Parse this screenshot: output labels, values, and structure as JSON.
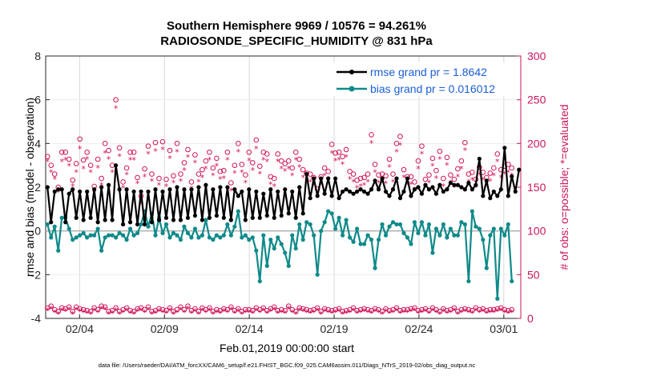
{
  "chart_data": {
    "type": "line",
    "title": "Southern Hemisphere 9969 / 10576 = 94.261%",
    "subtitle": "RADIOSONDE_SPECIFIC_HUMIDITY @ 831 hPa",
    "xlabel": "Feb.01,2019 00:00:00 start",
    "ylabel": "rmse and bias (model - observation)",
    "y2label": "# of obs: o=possible; *=evaluated",
    "footer": "data file: /Users/raeder/DAI/ATM_forcXX/CAM6_setup/f.e21.FHIST_BGC.f09_025.CAM6assim.011/Diags_NTrS_2019-02/obs_diag_output.nc",
    "xlim": [
      1,
      29
    ],
    "ylim": [
      -4,
      8
    ],
    "y2lim": [
      0,
      300
    ],
    "x_ticks": [
      3,
      8,
      13,
      18,
      23,
      28
    ],
    "x_tick_labels": [
      "02/04",
      "02/09",
      "02/14",
      "02/19",
      "02/24",
      "03/01"
    ],
    "y_ticks": [
      -4,
      -2,
      0,
      2,
      4,
      6,
      8
    ],
    "y2_ticks": [
      0,
      50,
      100,
      150,
      200,
      250,
      300
    ],
    "colors": {
      "rmse": "#000000",
      "bias": "#0f8a8a",
      "counts": "#d0145a",
      "legend_text": "#1a5fd6",
      "right_axis": "#c8175d"
    },
    "legend": [
      {
        "label": "rmse grand pr = 1.8642",
        "series": "rmse"
      },
      {
        "label": "bias grand pr = 0.016012",
        "series": "bias"
      }
    ],
    "series": [
      {
        "name": "rmse",
        "values": [
          2.0,
          0.4,
          1.8,
          1.9,
          1.9,
          0.4,
          1.7,
          1.9,
          0.6,
          1.8,
          0.5,
          1.8,
          0.6,
          1.9,
          0.4,
          2.0,
          0.5,
          2.1,
          0.5,
          3.0,
          1.9,
          0.3,
          1.9,
          0.4,
          1.8,
          0.3,
          1.8,
          0.3,
          1.8,
          0.4,
          1.9,
          0.5,
          1.8,
          0.6,
          1.9,
          0.5,
          2.0,
          0.5,
          1.9,
          0.6,
          1.9,
          0.7,
          2.0,
          0.5,
          2.1,
          0.6,
          1.9,
          0.7,
          2.0,
          0.6,
          2.0,
          0.5,
          1.9,
          1.6,
          1.8,
          0.5,
          1.9,
          0.6,
          1.8,
          0.6,
          1.7,
          0.7,
          1.9,
          0.6,
          1.8,
          0.7,
          1.9,
          0.8,
          1.8,
          0.6,
          2.0,
          0.8,
          2.6,
          1.5,
          2.4,
          1.6,
          2.4,
          1.7,
          2.4,
          1.6,
          2.4,
          1.5,
          1.8,
          1.9,
          1.8,
          1.7,
          1.8,
          1.9,
          1.8,
          1.7,
          1.9,
          2.3,
          1.9,
          2.4,
          1.8,
          1.6,
          1.9,
          2.4,
          1.5,
          1.8,
          2.4,
          1.6,
          1.9,
          2.0,
          1.7,
          2.1,
          1.9,
          2.0,
          1.7,
          2.1,
          1.8,
          1.9,
          2.2,
          2.1,
          2.1,
          2.0,
          1.9,
          2.2,
          1.9,
          2.1,
          3.3,
          1.6,
          2.3,
          1.5,
          1.8,
          1.6,
          1.9,
          3.8,
          1.6,
          2.5,
          1.8,
          2.8
        ]
      },
      {
        "name": "bias",
        "values": [
          0.3,
          -0.3,
          0.2,
          -0.9,
          0.6,
          0.6,
          0.1,
          -0.4,
          -0.3,
          -0.2,
          -0.1,
          -0.3,
          -0.2,
          -0.2,
          0.1,
          -0.9,
          -0.3,
          -0.2,
          -0.2,
          -0.3,
          -0.1,
          -0.2,
          -0.4,
          0.1,
          -0.2,
          -0.1,
          0.3,
          0.9,
          0.2,
          0.8,
          -0.2,
          0.6,
          -0.1,
          0.3,
          -0.3,
          -0.1,
          -0.2,
          -0.4,
          0.2,
          -0.1,
          -0.3,
          0.1,
          -0.3,
          -0.2,
          0.5,
          -0.3,
          -0.4,
          -0.2,
          -0.3,
          -0.2,
          0.3,
          -0.2,
          0.2,
          0.9,
          -0.3,
          -0.2,
          -0.4,
          -0.3,
          -0.9,
          -2.3,
          -0.2,
          -1.6,
          -0.4,
          -0.8,
          -0.3,
          -0.6,
          -1.0,
          -1.6,
          -0.2,
          -0.8,
          0.3,
          -0.4,
          0.4,
          0.3,
          -0.2,
          -2.0,
          0.0,
          0.4,
          0.9,
          0.8,
          0.1,
          0.6,
          -0.2,
          0.5,
          -0.3,
          -0.5,
          0.1,
          -0.6,
          -0.6,
          -0.2,
          -0.4,
          -1.7,
          -0.4,
          0.3,
          -0.2,
          0.2,
          0.4,
          0.3,
          0.3,
          -0.1,
          -0.3,
          -0.6,
          0.4,
          -0.1,
          0.4,
          -0.2,
          0.3,
          -1.0,
          0.1,
          -0.2,
          0.3,
          -0.3,
          0.1,
          -0.2,
          -0.2,
          0.4,
          0.3,
          -2.3,
          0.9,
          0.2,
          0.1,
          -0.4,
          -1.7,
          -0.2,
          0.1,
          -3.1,
          0.1,
          -0.2,
          0.3,
          -2.3
        ]
      },
      {
        "name": "possible",
        "values": [
          185,
          175,
          165,
          150,
          190,
          190,
          182,
          158,
          177,
          205,
          181,
          190,
          175,
          151,
          182,
          160,
          200,
          192,
          175,
          250,
          195,
          156,
          172,
          190,
          190,
          161,
          140,
          171,
          197,
          165,
          201,
          160,
          202,
          159,
          192,
          163,
          200,
          165,
          178,
          193,
          156,
          187,
          165,
          170,
          180,
          190,
          172,
          183,
          168,
          169,
          190,
          155,
          175,
          200,
          176,
          164,
          190,
          178,
          204,
          174,
          190,
          188,
          162,
          160,
          188,
          180,
          177,
          180,
          172,
          190,
          182,
          170,
          166,
          165,
          161,
          148,
          162,
          172,
          168,
          199,
          189,
          190,
          185,
          193,
          168,
          165,
          158,
          160,
          161,
          165,
          210,
          176,
          164,
          165,
          163,
          182,
          165,
          200,
          208,
          170,
          162,
          162,
          156,
          180,
          197,
          159,
          164,
          183,
          169,
          191,
          160,
          184,
          164,
          159,
          171,
          180,
          201,
          165,
          167,
          159,
          173,
          167,
          161,
          166,
          172,
          188,
          170,
          174,
          176,
          172
        ]
      },
      {
        "name": "evaluated",
        "values": [
          180,
          168,
          160,
          145,
          180,
          182,
          175,
          152,
          168,
          195,
          172,
          183,
          168,
          146,
          173,
          153,
          190,
          183,
          168,
          241,
          186,
          150,
          165,
          182,
          182,
          155,
          132,
          163,
          189,
          158,
          192,
          153,
          194,
          152,
          184,
          156,
          191,
          158,
          170,
          185,
          149,
          179,
          157,
          162,
          172,
          182,
          164,
          175,
          160,
          161,
          182,
          147,
          167,
          191,
          168,
          156,
          181,
          170,
          195,
          166,
          182,
          180,
          154,
          152,
          180,
          172,
          169,
          172,
          164,
          182,
          174,
          162,
          158,
          157,
          153,
          140,
          154,
          164,
          160,
          190,
          181,
          182,
          177,
          185,
          160,
          157,
          150,
          152,
          153,
          157,
          201,
          168,
          156,
          157,
          155,
          174,
          157,
          191,
          199,
          162,
          154,
          154,
          148,
          172,
          189,
          151,
          156,
          175,
          161,
          183,
          152,
          176,
          156,
          151,
          163,
          172,
          193,
          157,
          159,
          151,
          165,
          159,
          153,
          158,
          164,
          180,
          162,
          166,
          168,
          164
        ]
      },
      {
        "name": "possible_low",
        "values": [
          12,
          14,
          10,
          8,
          12,
          11,
          13,
          8,
          13,
          11,
          10,
          9,
          8,
          12,
          10,
          14,
          13,
          8,
          9,
          12,
          8,
          10,
          12,
          9,
          8,
          11,
          12,
          10,
          13,
          8,
          9,
          11,
          10,
          9,
          12,
          8,
          10,
          13,
          10,
          14,
          9,
          11,
          8,
          12,
          10,
          12,
          8,
          10,
          9,
          11,
          10,
          13,
          9,
          11,
          8,
          10,
          10,
          9,
          12,
          10,
          12,
          9,
          11,
          13,
          9,
          10,
          9,
          14,
          10,
          8,
          12,
          11,
          10,
          9,
          10,
          12,
          8,
          11,
          10,
          9,
          10,
          11,
          8,
          9,
          10,
          12,
          9,
          10,
          11,
          10,
          9,
          11,
          10,
          8,
          11,
          9,
          10,
          12,
          9,
          10,
          10,
          11,
          12,
          9,
          10,
          11,
          9,
          12,
          10,
          8,
          11,
          9,
          10,
          12,
          8,
          10,
          11,
          10,
          9,
          12,
          10,
          11,
          9,
          10,
          10,
          11,
          12,
          10,
          9,
          10
        ]
      },
      {
        "name": "evaluated_low",
        "values": [
          10,
          12,
          8,
          6,
          10,
          9,
          11,
          6,
          11,
          9,
          8,
          7,
          6,
          10,
          8,
          12,
          11,
          6,
          7,
          10,
          6,
          8,
          10,
          7,
          6,
          9,
          10,
          8,
          11,
          6,
          7,
          9,
          8,
          7,
          10,
          6,
          8,
          11,
          8,
          12,
          7,
          9,
          6,
          10,
          8,
          10,
          6,
          8,
          7,
          9,
          8,
          11,
          7,
          9,
          6,
          8,
          8,
          7,
          10,
          8,
          10,
          7,
          9,
          11,
          7,
          8,
          7,
          12,
          8,
          6,
          10,
          9,
          8,
          7,
          8,
          10,
          6,
          9,
          8,
          7,
          8,
          9,
          6,
          7,
          8,
          10,
          7,
          8,
          9,
          8,
          7,
          9,
          8,
          6,
          9,
          7,
          8,
          10,
          7,
          8,
          8,
          9,
          10,
          7,
          8,
          9,
          7,
          10,
          8,
          6,
          9,
          7,
          8,
          10,
          6,
          8,
          9,
          8,
          7,
          10,
          8,
          9,
          7,
          8,
          8,
          9,
          10,
          8,
          7,
          8
        ]
      }
    ]
  }
}
